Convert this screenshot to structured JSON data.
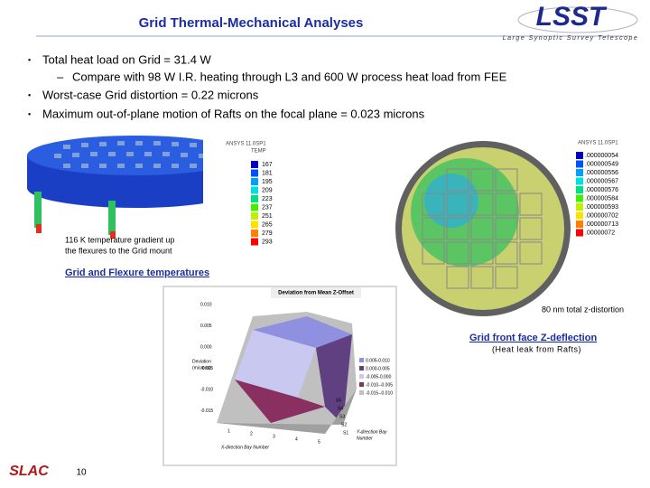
{
  "header": {
    "title": "Grid Thermal-Mechanical Analyses",
    "logo_text": "LSST",
    "logo_subtitle": "Large Synoptic Survey Telescope"
  },
  "bullets": [
    {
      "marker": "•",
      "text": "Total heat load on Grid = 31.4 W"
    },
    {
      "marker": "–",
      "text": "Compare with 98 W I.R. heating through L3 and 600 W process heat load from FEE"
    },
    {
      "marker": "•",
      "text": "Worst-case Grid distortion = 0.22 microns"
    },
    {
      "marker": "•",
      "text": "Maximum out-of-plane motion of Rafts on the focal plane = 0.023 microns"
    }
  ],
  "thermal_figure": {
    "software": "ANSYS 11.0SP1",
    "quantity": "TEMP",
    "legend": [
      "167",
      "181",
      "195",
      "209",
      "223",
      "237",
      "251",
      "265",
      "279",
      "293"
    ],
    "caption_lines": [
      "116 K temperature gradient up",
      "the flexures to the Grid mount"
    ],
    "link": "Grid and Flexure temperatures"
  },
  "deflection_figure": {
    "software": "ANSYS 11.0SP1",
    "legend": [
      ".000000054",
      ".000000549",
      ".000000556",
      ".000000567",
      ".000000576",
      ".000000584",
      ".000000593",
      ".000000702",
      ".000000713",
      ".00000072"
    ],
    "caption": "80 nm total z-distortion",
    "link": "Grid front face Z-deflection",
    "note": "(Heat leak from Rafts)"
  },
  "surface_chart": {
    "title": "Deviation from Mean Z-Offset",
    "y_label_lines": [
      "Deviation",
      "(microns)"
    ],
    "yticks": [
      "0.010",
      "0.005",
      "0.000",
      "-0.005",
      "-0.010",
      "-0.015"
    ],
    "legend": [
      "0.005-0.010",
      "0.000-0.005",
      "-0.005-0.000",
      "-0.010--0.005",
      "-0.015--0.010"
    ],
    "x_label": "X-direction Bay Number",
    "xticks": [
      "1",
      "2",
      "3",
      "4",
      "5"
    ],
    "depth_label_lines": [
      "Y-direction Bay",
      "Number"
    ],
    "depth_ticks": [
      "S5",
      "S4",
      "S3",
      "S2",
      "S1"
    ]
  },
  "footer": {
    "lab_logo": "SLAC",
    "slide_number": "10"
  }
}
